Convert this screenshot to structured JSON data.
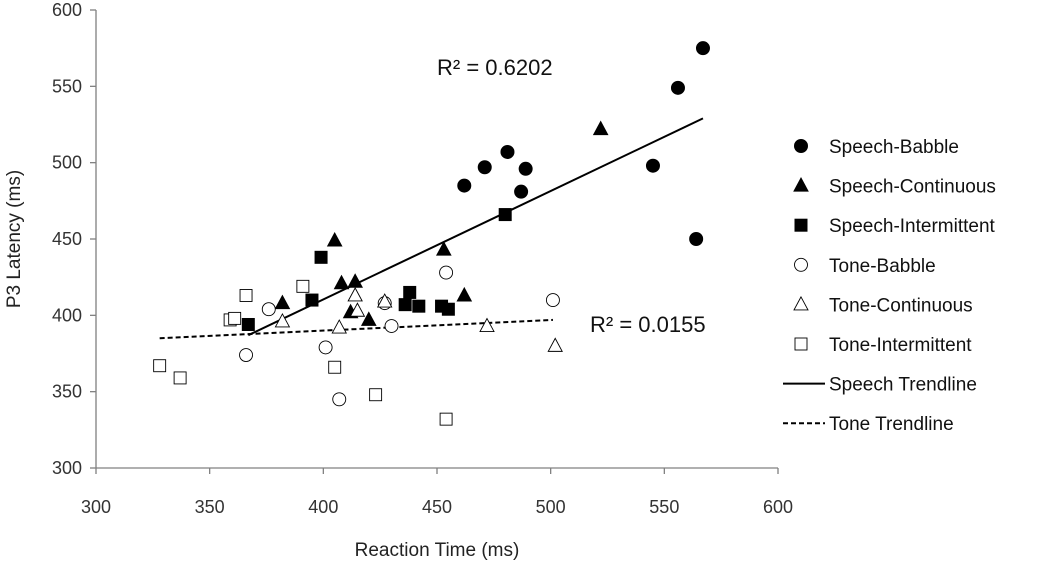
{
  "chart_data": {
    "type": "scatter",
    "title": "",
    "xlabel": "Reaction Time (ms)",
    "ylabel": "P3 Latency (ms)",
    "xlim": [
      300,
      600
    ],
    "ylim": [
      300,
      600
    ],
    "xticks": [
      300,
      350,
      400,
      450,
      500,
      550,
      600
    ],
    "yticks": [
      300,
      350,
      400,
      450,
      500,
      550,
      600
    ],
    "grid": false,
    "legend_position": "right",
    "series": [
      {
        "name": "Speech-Babble",
        "marker": "circle",
        "filled": true,
        "points": [
          [
            462,
            485
          ],
          [
            471,
            497
          ],
          [
            481,
            507
          ],
          [
            487,
            481
          ],
          [
            489,
            496
          ],
          [
            545,
            498
          ],
          [
            556,
            549
          ],
          [
            564,
            450
          ],
          [
            567,
            575
          ]
        ]
      },
      {
        "name": "Speech-Continuous",
        "marker": "triangle",
        "filled": true,
        "points": [
          [
            382,
            408
          ],
          [
            405,
            449
          ],
          [
            408,
            421
          ],
          [
            412,
            402
          ],
          [
            414,
            422
          ],
          [
            420,
            397
          ],
          [
            453,
            443
          ],
          [
            462,
            413
          ],
          [
            522,
            522
          ]
        ]
      },
      {
        "name": "Speech-Intermittent",
        "marker": "square",
        "filled": true,
        "points": [
          [
            367,
            394
          ],
          [
            395,
            410
          ],
          [
            399,
            438
          ],
          [
            436,
            407
          ],
          [
            438,
            415
          ],
          [
            442,
            406
          ],
          [
            452,
            406
          ],
          [
            455,
            404
          ],
          [
            480,
            466
          ]
        ]
      },
      {
        "name": "Tone-Babble",
        "marker": "circle",
        "filled": false,
        "points": [
          [
            366,
            374
          ],
          [
            376,
            404
          ],
          [
            401,
            379
          ],
          [
            407,
            345
          ],
          [
            427,
            408
          ],
          [
            430,
            393
          ],
          [
            454,
            428
          ],
          [
            501,
            410
          ]
        ]
      },
      {
        "name": "Tone-Continuous",
        "marker": "triangle",
        "filled": false,
        "points": [
          [
            382,
            396
          ],
          [
            407,
            392
          ],
          [
            414,
            413
          ],
          [
            415,
            403
          ],
          [
            427,
            409
          ],
          [
            472,
            393
          ],
          [
            502,
            380
          ]
        ]
      },
      {
        "name": "Tone-Intermittent",
        "marker": "square",
        "filled": false,
        "points": [
          [
            328,
            367
          ],
          [
            337,
            359
          ],
          [
            359,
            397
          ],
          [
            361,
            398
          ],
          [
            366,
            413
          ],
          [
            391,
            419
          ],
          [
            405,
            366
          ],
          [
            423,
            348
          ],
          [
            454,
            332
          ]
        ]
      }
    ],
    "trendlines": [
      {
        "name": "Speech Trendline",
        "style": "solid",
        "x": [
          367,
          567
        ],
        "y": [
          387,
          529
        ],
        "r2_label": "R² = 0.6202"
      },
      {
        "name": "Tone Trendline",
        "style": "dashed",
        "x": [
          328,
          501
        ],
        "y": [
          385,
          397
        ],
        "r2_label": "R² = 0.0155"
      }
    ]
  }
}
